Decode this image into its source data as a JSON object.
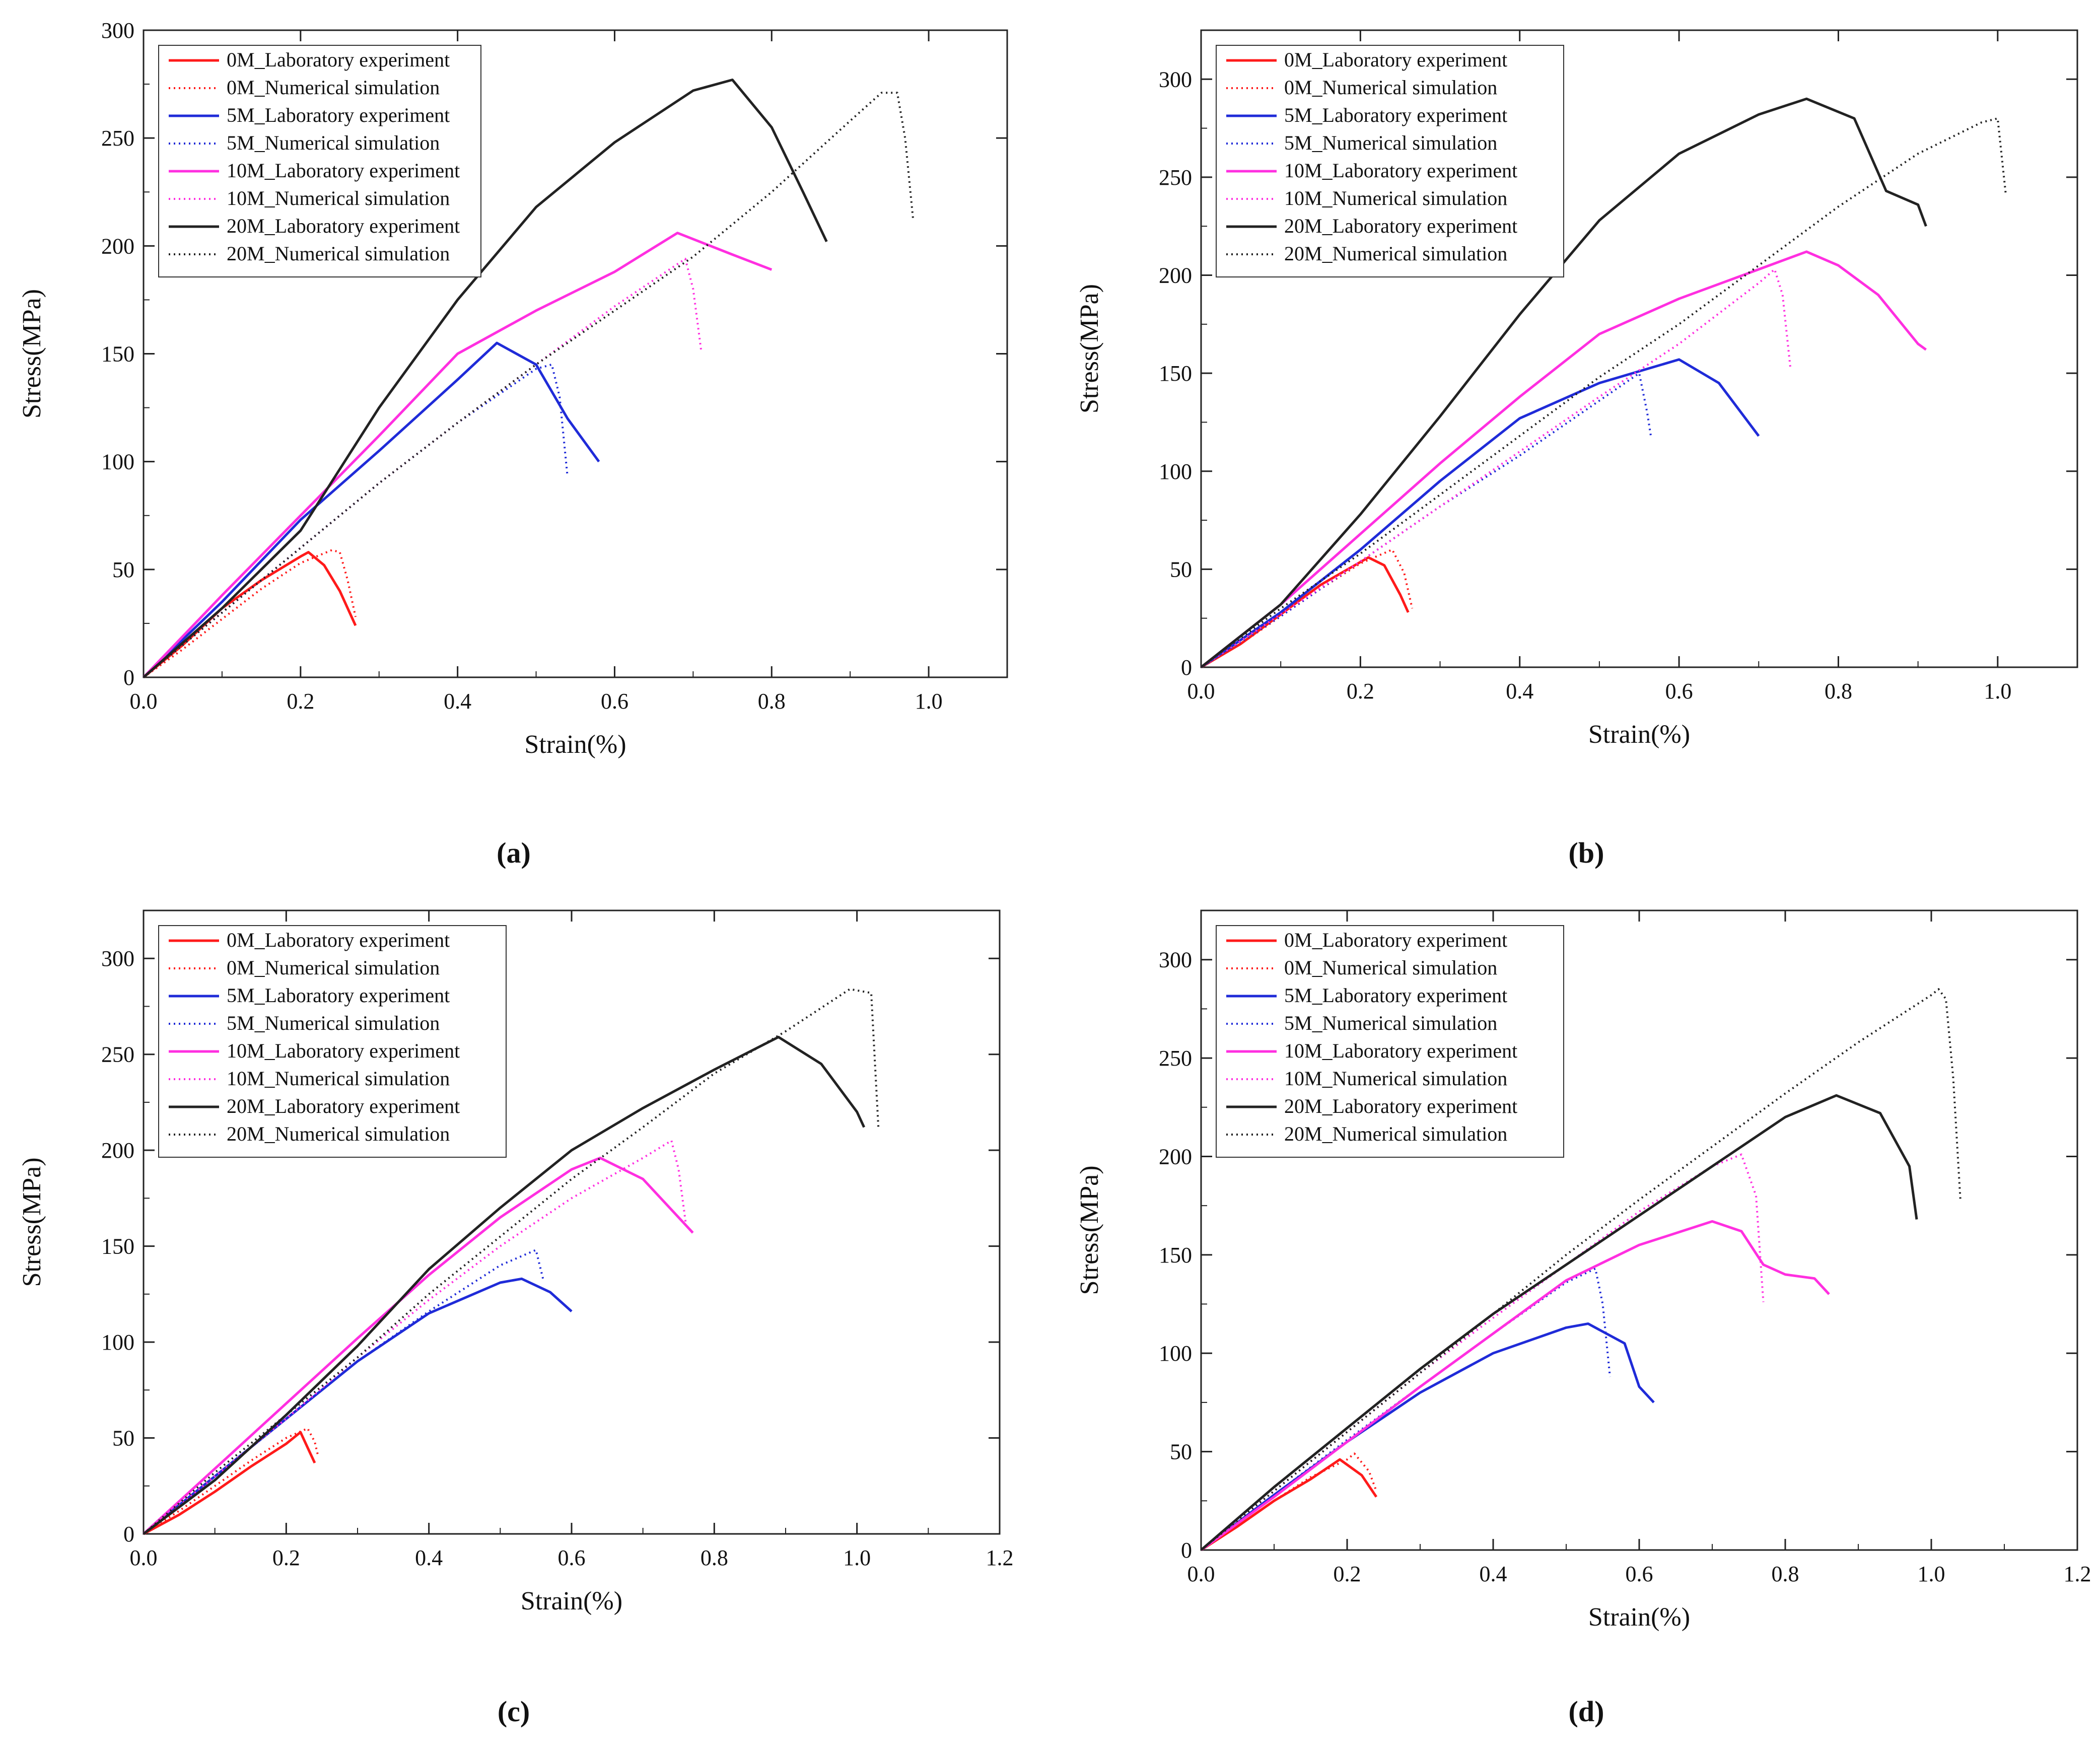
{
  "legend_entries": [
    {
      "label": "0M_Laboratory experiment",
      "color": "#ff1a1a",
      "style": "solid"
    },
    {
      "label": "0M_Numerical simulation",
      "color": "#ff1a1a",
      "style": "dotted"
    },
    {
      "label": "5M_Laboratory experiment",
      "color": "#1f2bd8",
      "style": "solid"
    },
    {
      "label": "5M_Numerical simulation",
      "color": "#1f2bd8",
      "style": "dotted"
    },
    {
      "label": "10M_Laboratory experiment",
      "color": "#ff2fe0",
      "style": "solid"
    },
    {
      "label": "10M_Numerical simulation",
      "color": "#ff2fe0",
      "style": "dotted"
    },
    {
      "label": "20M_Laboratory experiment",
      "color": "#222222",
      "style": "solid"
    },
    {
      "label": "20M_Numerical simulation",
      "color": "#222222",
      "style": "dotted"
    }
  ],
  "colors": {
    "0M": "#ff1a1a",
    "5M": "#1f2bd8",
    "10M": "#ff2fe0",
    "20M": "#222222"
  },
  "chart_data": [
    {
      "type": "line",
      "panel": "a",
      "xlabel": "Strain(%)",
      "ylabel": "Stress(MPa)",
      "xlim": [
        0,
        1.1
      ],
      "ylim": [
        0,
        300
      ],
      "xticks": [
        "0.0",
        "0.2",
        "0.4",
        "0.6",
        "0.8",
        "1.0"
      ],
      "yticks": [
        "0",
        "50",
        "100",
        "150",
        "200",
        "250",
        "300"
      ],
      "series": [
        {
          "name": "0M_Laboratory experiment",
          "x": [
            0,
            0.05,
            0.1,
            0.15,
            0.2,
            0.21,
            0.23,
            0.25,
            0.26,
            0.27
          ],
          "y": [
            0,
            15,
            32,
            45,
            56,
            58,
            52,
            40,
            32,
            24
          ]
        },
        {
          "name": "0M_Numerical simulation",
          "x": [
            0,
            0.05,
            0.1,
            0.15,
            0.2,
            0.24,
            0.25,
            0.26,
            0.27
          ],
          "y": [
            0,
            13,
            27,
            41,
            53,
            59,
            58,
            45,
            28
          ]
        },
        {
          "name": "5M_Laboratory experiment",
          "x": [
            0,
            0.1,
            0.2,
            0.3,
            0.4,
            0.45,
            0.5,
            0.54,
            0.58
          ],
          "y": [
            0,
            35,
            73,
            105,
            138,
            155,
            145,
            120,
            100
          ]
        },
        {
          "name": "5M_Numerical simulation",
          "x": [
            0,
            0.1,
            0.2,
            0.3,
            0.4,
            0.5,
            0.52,
            0.53,
            0.54
          ],
          "y": [
            0,
            30,
            60,
            90,
            118,
            143,
            145,
            130,
            93
          ]
        },
        {
          "name": "10M_Laboratory experiment",
          "x": [
            0,
            0.1,
            0.2,
            0.3,
            0.4,
            0.5,
            0.6,
            0.68,
            0.75,
            0.8
          ],
          "y": [
            0,
            38,
            75,
            112,
            150,
            170,
            188,
            206,
            196,
            189
          ]
        },
        {
          "name": "10M_Numerical simulation",
          "x": [
            0,
            0.1,
            0.2,
            0.3,
            0.4,
            0.5,
            0.6,
            0.69,
            0.7,
            0.71
          ],
          "y": [
            0,
            30,
            60,
            90,
            118,
            145,
            172,
            194,
            180,
            152
          ]
        },
        {
          "name": "20M_Laboratory experiment",
          "x": [
            0,
            0.1,
            0.2,
            0.3,
            0.4,
            0.5,
            0.6,
            0.7,
            0.75,
            0.8,
            0.84,
            0.87
          ],
          "y": [
            0,
            32,
            68,
            125,
            175,
            218,
            248,
            272,
            277,
            255,
            225,
            202
          ]
        },
        {
          "name": "20M_Numerical simulation",
          "x": [
            0,
            0.1,
            0.2,
            0.3,
            0.4,
            0.5,
            0.6,
            0.7,
            0.8,
            0.9,
            0.94,
            0.96,
            0.97,
            0.98
          ],
          "y": [
            0,
            30,
            60,
            90,
            118,
            145,
            170,
            195,
            225,
            258,
            271,
            271,
            250,
            213
          ]
        }
      ]
    },
    {
      "type": "line",
      "panel": "b",
      "xlabel": "Strain(%)",
      "ylabel": "Stress(MPa)",
      "xlim": [
        0,
        1.1
      ],
      "ylim": [
        0,
        325
      ],
      "xticks": [
        "0.0",
        "0.2",
        "0.4",
        "0.6",
        "0.8",
        "1.0"
      ],
      "yticks": [
        "0",
        "50",
        "100",
        "150",
        "200",
        "250",
        "300"
      ],
      "series": [
        {
          "name": "0M_Laboratory experiment",
          "x": [
            0,
            0.05,
            0.1,
            0.15,
            0.21,
            0.23,
            0.25,
            0.26
          ],
          "y": [
            0,
            12,
            27,
            42,
            56,
            52,
            37,
            28
          ]
        },
        {
          "name": "0M_Numerical simulation",
          "x": [
            0,
            0.05,
            0.1,
            0.15,
            0.2,
            0.24,
            0.255,
            0.265
          ],
          "y": [
            0,
            12,
            26,
            40,
            53,
            60,
            48,
            30
          ]
        },
        {
          "name": "5M_Laboratory experiment",
          "x": [
            0,
            0.1,
            0.2,
            0.3,
            0.4,
            0.5,
            0.6,
            0.65,
            0.7
          ],
          "y": [
            0,
            28,
            60,
            95,
            127,
            145,
            157,
            145,
            118
          ]
        },
        {
          "name": "5M_Numerical simulation",
          "x": [
            0,
            0.1,
            0.2,
            0.3,
            0.4,
            0.5,
            0.55,
            0.56,
            0.565
          ],
          "y": [
            0,
            26,
            54,
            82,
            108,
            136,
            150,
            130,
            117
          ]
        },
        {
          "name": "10M_Laboratory experiment",
          "x": [
            0,
            0.1,
            0.2,
            0.3,
            0.4,
            0.5,
            0.6,
            0.7,
            0.76,
            0.8,
            0.85,
            0.9,
            0.91
          ],
          "y": [
            0,
            32,
            68,
            104,
            138,
            170,
            188,
            203,
            212,
            205,
            190,
            165,
            162
          ]
        },
        {
          "name": "10M_Numerical simulation",
          "x": [
            0,
            0.1,
            0.2,
            0.3,
            0.4,
            0.5,
            0.6,
            0.7,
            0.72,
            0.73,
            0.74
          ],
          "y": [
            0,
            27,
            54,
            82,
            110,
            138,
            165,
            196,
            203,
            190,
            152
          ]
        },
        {
          "name": "20M_Laboratory experiment",
          "x": [
            0,
            0.1,
            0.2,
            0.3,
            0.4,
            0.5,
            0.6,
            0.7,
            0.76,
            0.82,
            0.86,
            0.9,
            0.91
          ],
          "y": [
            0,
            32,
            78,
            128,
            180,
            228,
            262,
            282,
            290,
            280,
            243,
            236,
            225
          ]
        },
        {
          "name": "20M_Numerical simulation",
          "x": [
            0,
            0.1,
            0.2,
            0.3,
            0.4,
            0.5,
            0.6,
            0.7,
            0.8,
            0.9,
            0.98,
            1.0,
            1.01
          ],
          "y": [
            0,
            30,
            58,
            88,
            118,
            148,
            175,
            205,
            235,
            262,
            278,
            280,
            242
          ]
        }
      ]
    },
    {
      "type": "line",
      "panel": "c",
      "xlabel": "Strain(%)",
      "ylabel": "Stress(MPa)",
      "xlim": [
        0,
        1.2
      ],
      "ylim": [
        0,
        325
      ],
      "xticks": [
        "0.0",
        "0.2",
        "0.4",
        "0.6",
        "0.8",
        "1.0",
        "1.2"
      ],
      "yticks": [
        "0",
        "50",
        "100",
        "150",
        "200",
        "250",
        "300"
      ],
      "series": [
        {
          "name": "0M_Laboratory experiment",
          "x": [
            0,
            0.05,
            0.1,
            0.15,
            0.2,
            0.22,
            0.23,
            0.24
          ],
          "y": [
            0,
            10,
            22,
            35,
            47,
            53,
            45,
            37
          ]
        },
        {
          "name": "0M_Numerical simulation",
          "x": [
            0,
            0.05,
            0.1,
            0.15,
            0.2,
            0.23,
            0.24,
            0.245
          ],
          "y": [
            0,
            12,
            25,
            38,
            50,
            55,
            48,
            40
          ]
        },
        {
          "name": "5M_Laboratory experiment",
          "x": [
            0,
            0.1,
            0.2,
            0.3,
            0.4,
            0.5,
            0.53,
            0.57,
            0.6
          ],
          "y": [
            0,
            30,
            60,
            90,
            115,
            131,
            133,
            126,
            116
          ]
        },
        {
          "name": "5M_Numerical simulation",
          "x": [
            0,
            0.1,
            0.2,
            0.3,
            0.4,
            0.5,
            0.55,
            0.56
          ],
          "y": [
            0,
            30,
            60,
            90,
            116,
            140,
            148,
            133
          ]
        },
        {
          "name": "10M_Laboratory experiment",
          "x": [
            0,
            0.1,
            0.2,
            0.3,
            0.4,
            0.5,
            0.6,
            0.64,
            0.7,
            0.77
          ],
          "y": [
            0,
            34,
            68,
            102,
            135,
            165,
            190,
            196,
            185,
            157
          ]
        },
        {
          "name": "10M_Numerical simulation",
          "x": [
            0,
            0.1,
            0.2,
            0.3,
            0.4,
            0.5,
            0.6,
            0.7,
            0.74,
            0.75,
            0.76
          ],
          "y": [
            0,
            30,
            60,
            92,
            122,
            150,
            175,
            196,
            205,
            190,
            162
          ]
        },
        {
          "name": "20M_Laboratory experiment",
          "x": [
            0,
            0.1,
            0.2,
            0.3,
            0.4,
            0.5,
            0.6,
            0.7,
            0.8,
            0.89,
            0.95,
            1.0,
            1.01
          ],
          "y": [
            0,
            28,
            62,
            98,
            138,
            170,
            200,
            222,
            242,
            259,
            245,
            220,
            212
          ]
        },
        {
          "name": "20M_Numerical simulation",
          "x": [
            0,
            0.1,
            0.2,
            0.3,
            0.4,
            0.5,
            0.6,
            0.7,
            0.8,
            0.9,
            0.99,
            1.02,
            1.03
          ],
          "y": [
            0,
            32,
            62,
            92,
            125,
            155,
            185,
            212,
            240,
            262,
            284,
            282,
            212
          ]
        }
      ]
    },
    {
      "type": "line",
      "panel": "d",
      "xlabel": "Strain(%)",
      "ylabel": "Stress(MPa)",
      "xlim": [
        0,
        1.2
      ],
      "ylim": [
        0,
        325
      ],
      "xticks": [
        "0.0",
        "0.2",
        "0.4",
        "0.6",
        "0.8",
        "1.0",
        "1.2"
      ],
      "yticks": [
        "0",
        "50",
        "100",
        "150",
        "200",
        "250",
        "300"
      ],
      "series": [
        {
          "name": "0M_Laboratory experiment",
          "x": [
            0,
            0.05,
            0.1,
            0.15,
            0.19,
            0.22,
            0.24
          ],
          "y": [
            0,
            12,
            25,
            36,
            46,
            38,
            27
          ]
        },
        {
          "name": "0M_Numerical simulation",
          "x": [
            0,
            0.05,
            0.1,
            0.15,
            0.2,
            0.21,
            0.23,
            0.24
          ],
          "y": [
            0,
            12,
            25,
            37,
            46,
            49,
            40,
            30
          ]
        },
        {
          "name": "5M_Laboratory experiment",
          "x": [
            0,
            0.1,
            0.2,
            0.3,
            0.4,
            0.5,
            0.53,
            0.58,
            0.6,
            0.62
          ],
          "y": [
            0,
            28,
            55,
            80,
            100,
            113,
            115,
            105,
            83,
            75
          ]
        },
        {
          "name": "5M_Numerical simulation",
          "x": [
            0,
            0.1,
            0.2,
            0.3,
            0.4,
            0.5,
            0.54,
            0.55,
            0.56
          ],
          "y": [
            0,
            28,
            56,
            83,
            110,
            136,
            143,
            125,
            88
          ]
        },
        {
          "name": "10M_Laboratory experiment",
          "x": [
            0,
            0.1,
            0.2,
            0.3,
            0.4,
            0.5,
            0.6,
            0.7,
            0.74,
            0.77,
            0.8,
            0.84,
            0.86
          ],
          "y": [
            0,
            27,
            55,
            83,
            110,
            137,
            155,
            167,
            162,
            145,
            140,
            138,
            130
          ]
        },
        {
          "name": "10M_Numerical simulation",
          "x": [
            0,
            0.1,
            0.2,
            0.3,
            0.4,
            0.5,
            0.6,
            0.7,
            0.74,
            0.76,
            0.77
          ],
          "y": [
            0,
            30,
            60,
            90,
            118,
            145,
            172,
            195,
            201,
            180,
            126
          ]
        },
        {
          "name": "20M_Laboratory experiment",
          "x": [
            0,
            0.1,
            0.2,
            0.3,
            0.4,
            0.5,
            0.6,
            0.7,
            0.8,
            0.87,
            0.93,
            0.97,
            0.98
          ],
          "y": [
            0,
            32,
            62,
            92,
            120,
            145,
            170,
            195,
            220,
            231,
            222,
            195,
            168
          ]
        },
        {
          "name": "20M_Numerical simulation",
          "x": [
            0,
            0.1,
            0.2,
            0.3,
            0.4,
            0.5,
            0.6,
            0.7,
            0.8,
            0.9,
            1.0,
            1.01,
            1.02,
            1.03,
            1.04
          ],
          "y": [
            0,
            30,
            60,
            90,
            120,
            150,
            178,
            205,
            232,
            258,
            282,
            285,
            280,
            240,
            177
          ]
        }
      ]
    }
  ],
  "panel_labels": [
    "(a)",
    "(b)",
    "(c)",
    "(d)"
  ]
}
